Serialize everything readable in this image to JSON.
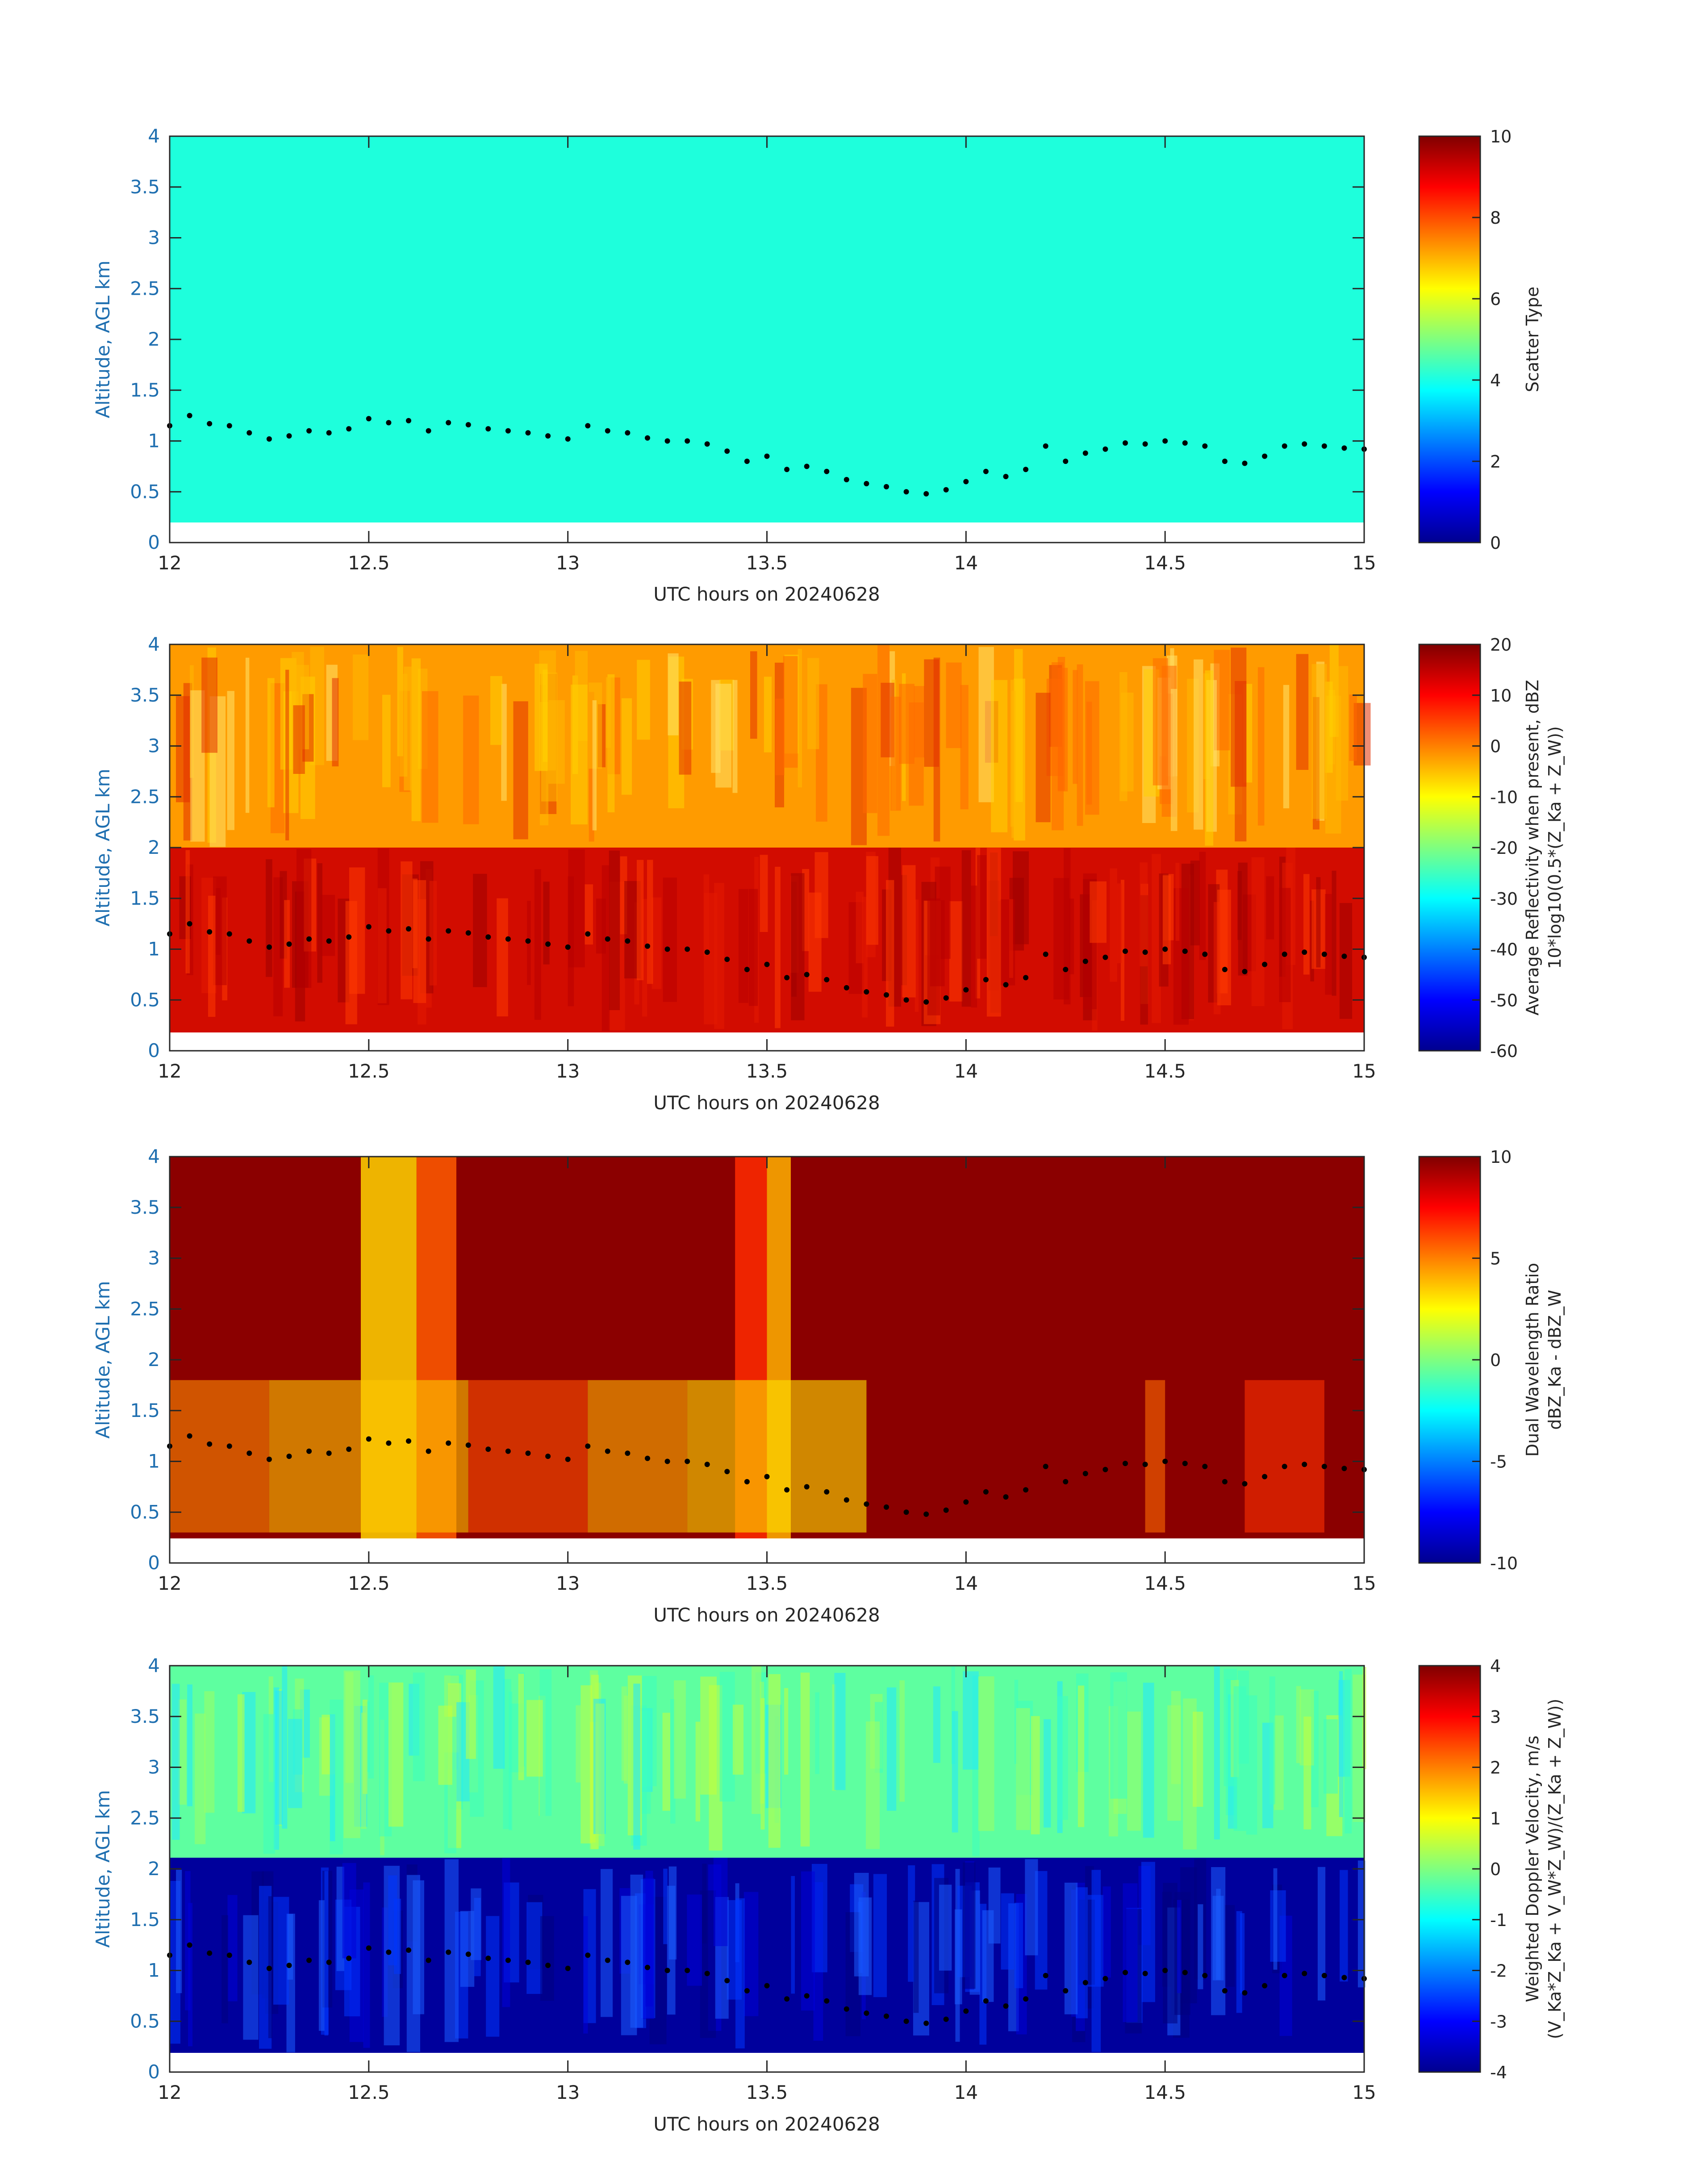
{
  "figure": {
    "background": "#ffffff",
    "axis_blue": "#1f6fb0",
    "dot_color": "#000000",
    "time_xlim": [
      12,
      15
    ],
    "alt_ylim": [
      0,
      4
    ],
    "x_ticks": [
      "12",
      "12.5",
      "13",
      "13.5",
      "14",
      "14.5",
      "15"
    ],
    "y_ticks": [
      "0",
      "0.5",
      "1",
      "1.5",
      "2",
      "2.5",
      "3",
      "3.5",
      "4"
    ]
  },
  "chart_data": [
    {
      "type": "heatmap",
      "id": "scatter_type",
      "xlabel": "UTC hours on 20240628",
      "ylabel": "Altitude, AGL km",
      "xlim": [
        12,
        15
      ],
      "ylim": [
        0,
        4
      ],
      "clim": [
        0,
        10
      ],
      "cbar_ticks": [
        "0",
        "2",
        "4",
        "6",
        "8",
        "10"
      ],
      "cbar_label_lines": [
        "Scatter Type"
      ],
      "field": "uniform value 4 from 0.2 to 4 km",
      "cloud_base_dots": true
    },
    {
      "type": "heatmap",
      "id": "reflectivity",
      "xlabel": "UTC hours on 20240628",
      "ylabel": "Altitude, AGL km",
      "xlim": [
        12,
        15
      ],
      "ylim": [
        0,
        4
      ],
      "clim": [
        -60,
        20
      ],
      "cbar_ticks": [
        "-60",
        "-50",
        "-40",
        "-30",
        "-20",
        "-10",
        "0",
        "10",
        "20"
      ],
      "cbar_label_lines": [
        "Average Reflectivity when present, dBZ",
        "10*log10(0.5*(Z_Ka + Z_W))"
      ],
      "field": "about 10 dBZ below 2 km, 0 to -15 dBZ above",
      "cloud_base_dots": true
    },
    {
      "type": "heatmap",
      "id": "dwr",
      "xlabel": "UTC hours on 20240628",
      "ylabel": "Altitude, AGL km",
      "xlim": [
        12,
        15
      ],
      "ylim": [
        0,
        4
      ],
      "clim": [
        -10,
        10
      ],
      "cbar_ticks": [
        "-10",
        "-5",
        "0",
        "5",
        "10"
      ],
      "cbar_label_lines": [
        "Dual Wavelength Ratio",
        "dBZ_Ka - dBZ_W"
      ],
      "field": "mostly saturated at 10, yellow columns near 12.5 h and 13.5 h",
      "cloud_base_dots": true
    },
    {
      "type": "heatmap",
      "id": "doppler",
      "xlabel": "UTC hours on 20240628",
      "ylabel": "Altitude, AGL km",
      "xlim": [
        12,
        15
      ],
      "ylim": [
        0,
        4
      ],
      "clim": [
        -4,
        4
      ],
      "cbar_ticks": [
        "-4",
        "-3",
        "-2",
        "-1",
        "0",
        "1",
        "2",
        "3",
        "4"
      ],
      "cbar_label_lines": [
        "Weighted Doppler Velocity, m/s",
        "(V_Ka*Z_Ka + V_W*Z_W)/(Z_Ka + Z_W))"
      ],
      "field": "about -0.7 m/s above 1.9 km, about -4 m/s below",
      "cloud_base_dots": true
    }
  ],
  "cloud_base": {
    "t": [
      12.0,
      12.05,
      12.1,
      12.15,
      12.2,
      12.25,
      12.3,
      12.35,
      12.4,
      12.45,
      12.5,
      12.55,
      12.6,
      12.65,
      12.7,
      12.75,
      12.8,
      12.85,
      12.9,
      12.95,
      13.0,
      13.05,
      13.1,
      13.15,
      13.2,
      13.25,
      13.3,
      13.35,
      13.4,
      13.45,
      13.5,
      13.55,
      13.6,
      13.65,
      13.7,
      13.75,
      13.8,
      13.85,
      13.9,
      13.95,
      14.0,
      14.05,
      14.1,
      14.15,
      14.2,
      14.25,
      14.3,
      14.35,
      14.4,
      14.45,
      14.5,
      14.55,
      14.6,
      14.65,
      14.7,
      14.75,
      14.8,
      14.85,
      14.9,
      14.95,
      15.0
    ],
    "alt": [
      1.15,
      1.25,
      1.17,
      1.15,
      1.08,
      1.02,
      1.05,
      1.1,
      1.08,
      1.12,
      1.22,
      1.18,
      1.2,
      1.1,
      1.18,
      1.16,
      1.12,
      1.1,
      1.08,
      1.05,
      1.02,
      1.15,
      1.1,
      1.08,
      1.03,
      1.0,
      1.0,
      0.97,
      0.9,
      0.8,
      0.85,
      0.72,
      0.75,
      0.7,
      0.62,
      0.58,
      0.55,
      0.5,
      0.48,
      0.52,
      0.6,
      0.7,
      0.65,
      0.72,
      0.95,
      0.8,
      0.88,
      0.92,
      0.98,
      0.97,
      1.0,
      0.98,
      0.95,
      0.8,
      0.78,
      0.85,
      0.95,
      0.97,
      0.95,
      0.93,
      0.92
    ]
  }
}
